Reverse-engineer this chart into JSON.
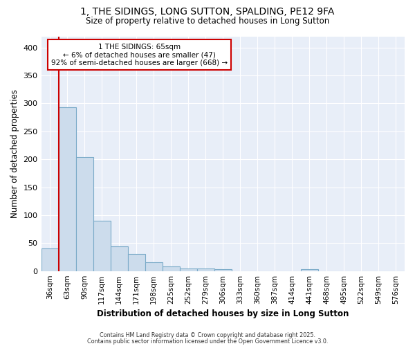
{
  "title_line1": "1, THE SIDINGS, LONG SUTTON, SPALDING, PE12 9FA",
  "title_line2": "Size of property relative to detached houses in Long Sutton",
  "xlabel": "Distribution of detached houses by size in Long Sutton",
  "ylabel": "Number of detached properties",
  "categories": [
    "36sqm",
    "63sqm",
    "90sqm",
    "117sqm",
    "144sqm",
    "171sqm",
    "198sqm",
    "225sqm",
    "252sqm",
    "279sqm",
    "306sqm",
    "333sqm",
    "360sqm",
    "387sqm",
    "414sqm",
    "441sqm",
    "468sqm",
    "495sqm",
    "522sqm",
    "549sqm",
    "576sqm"
  ],
  "values": [
    41,
    293,
    204,
    90,
    44,
    31,
    16,
    8,
    5,
    5,
    3,
    0,
    0,
    0,
    0,
    3,
    0,
    0,
    0,
    0,
    0
  ],
  "bar_color": "#ccdcec",
  "bar_edge_color": "#7aaac8",
  "vline_color": "#cc0000",
  "annotation_text": "1 THE SIDINGS: 65sqm\n← 6% of detached houses are smaller (47)\n92% of semi-detached houses are larger (668) →",
  "annotation_box_color": "#ffffff",
  "annotation_box_edge": "#cc0000",
  "ylim": [
    0,
    420
  ],
  "yticks": [
    0,
    50,
    100,
    150,
    200,
    250,
    300,
    350,
    400
  ],
  "figure_bg": "#ffffff",
  "axes_bg": "#e8eef8",
  "grid_color": "#ffffff",
  "footer_line1": "Contains HM Land Registry data © Crown copyright and database right 2025.",
  "footer_line2": "Contains public sector information licensed under the Open Government Licence v3.0."
}
